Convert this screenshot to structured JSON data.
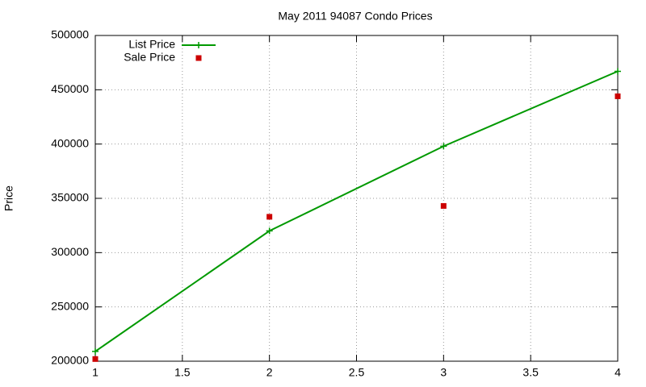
{
  "chart_data": {
    "type": "line",
    "title": "May 2011 94087 Condo Prices",
    "y_label": "Price",
    "x": [
      1,
      2,
      3,
      4
    ],
    "series": [
      {
        "name": "List Price",
        "color": "#009900",
        "mode": "lines+points",
        "marker": "plus",
        "values": [
          209000,
          320000,
          398000,
          467000
        ]
      },
      {
        "name": "Sale Price",
        "color": "#cc0000",
        "mode": "points",
        "marker": "square",
        "values": [
          202000,
          333000,
          343000,
          444000
        ]
      }
    ],
    "xlim": [
      1,
      4
    ],
    "xticks": [
      1,
      1.5,
      2,
      2.5,
      3,
      3.5,
      4
    ],
    "ylim": [
      200000,
      500000
    ],
    "yticks": [
      200000,
      250000,
      300000,
      350000,
      400000,
      450000,
      500000
    ],
    "grid": true,
    "legend": "top-left"
  }
}
